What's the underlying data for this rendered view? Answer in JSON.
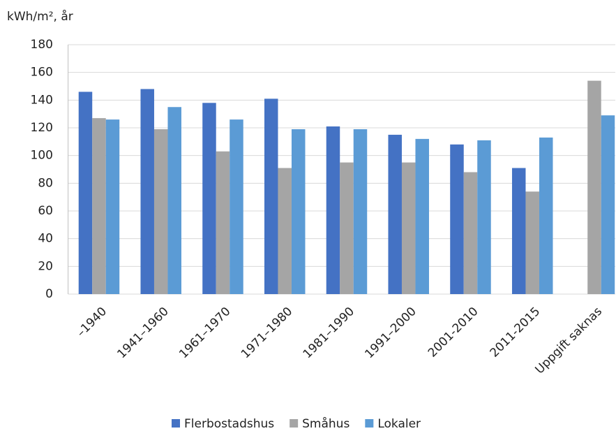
{
  "chart_data": {
    "type": "bar",
    "y_label": "kWh/m², år",
    "categories": [
      "–1940",
      "1941–1960",
      "1961–1970",
      "1971–1980",
      "1981–1990",
      "1991–2000",
      "2001-2010",
      "2011-2015",
      "Uppgift saknas"
    ],
    "series": [
      {
        "name": "Flerbostadshus",
        "color": "#4472c4",
        "values": [
          146,
          148,
          138,
          141,
          121,
          115,
          108,
          91,
          null
        ]
      },
      {
        "name": "Småhus",
        "color": "#a5a5a5",
        "values": [
          127,
          119,
          103,
          91,
          95,
          95,
          88,
          74,
          154
        ]
      },
      {
        "name": "Lokaler",
        "color": "#5b9bd5",
        "values": [
          126,
          135,
          126,
          119,
          119,
          112,
          111,
          113,
          129
        ]
      }
    ],
    "ylim": [
      0,
      180
    ],
    "yticks": [
      0,
      20,
      40,
      60,
      80,
      100,
      120,
      140,
      160,
      180
    ],
    "grid": true,
    "legend": "bottom"
  }
}
